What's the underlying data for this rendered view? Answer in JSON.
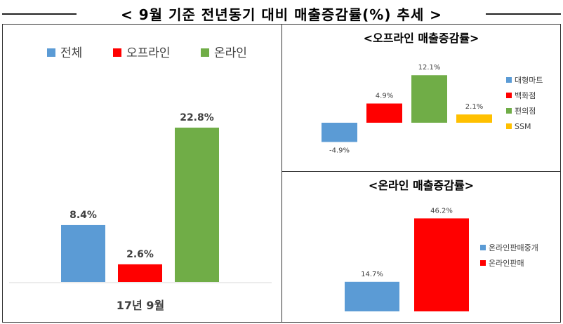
{
  "page_title": "< 9월 기준 전년동기 대비 매출증감률(%) 추세 >",
  "chart_data": [
    {
      "type": "bar",
      "title": "",
      "categories": [
        "17년 9월"
      ],
      "series": [
        {
          "name": "전체",
          "values": [
            8.4
          ],
          "color": "#5B9BD5",
          "label": "8.4%"
        },
        {
          "name": "오프라인",
          "values": [
            2.6
          ],
          "color": "#FF0000",
          "label": "2.6%"
        },
        {
          "name": "온라인",
          "values": [
            22.8
          ],
          "color": "#70AD47",
          "label": "22.8%"
        }
      ],
      "legend": "top",
      "grid": false
    },
    {
      "type": "bar",
      "title": "<오프라인 매출증감률>",
      "series": [
        {
          "name": "대형마트",
          "values": [
            -4.9
          ],
          "color": "#5B9BD5",
          "label": "-4.9%"
        },
        {
          "name": "백화점",
          "values": [
            4.9
          ],
          "color": "#FF0000",
          "label": "4.9%"
        },
        {
          "name": "편의점",
          "values": [
            12.1
          ],
          "color": "#70AD47",
          "label": "12.1%"
        },
        {
          "name": "SSM",
          "values": [
            2.1
          ],
          "color": "#FFC000",
          "label": "2.1%"
        }
      ],
      "legend": "right",
      "grid": false
    },
    {
      "type": "bar",
      "title": "<온라인 매출증감률>",
      "series": [
        {
          "name": "온라인판매중개",
          "values": [
            14.7
          ],
          "color": "#5B9BD5",
          "label": "14.7%"
        },
        {
          "name": "온라인판매",
          "values": [
            46.2
          ],
          "color": "#FF0000",
          "label": "46.2%"
        }
      ],
      "legend": "right",
      "grid": false
    }
  ]
}
